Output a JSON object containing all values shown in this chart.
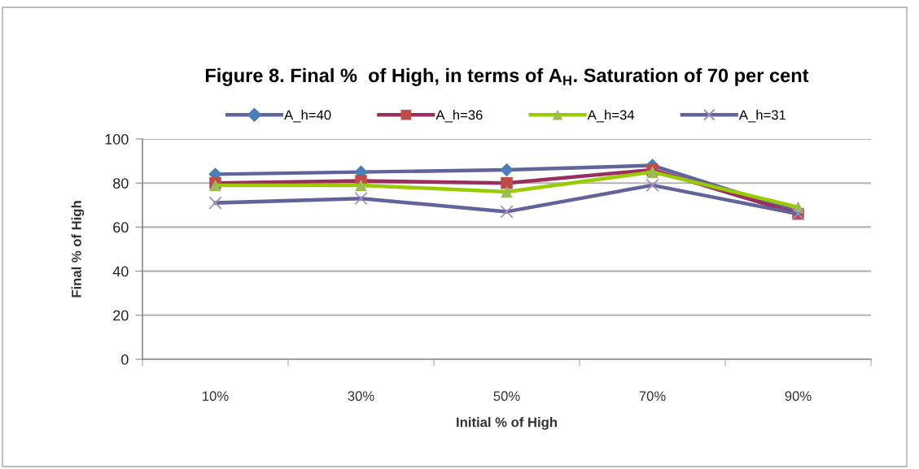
{
  "chart_data": {
    "type": "line",
    "title": "Figure 8. Final %  of High, in terms of A$_{H}$. Saturation of 70 per cent",
    "xlabel": "Initial % of High",
    "ylabel": "Final % of High",
    "categories": [
      "10%",
      "30%",
      "50%",
      "70%",
      "90%"
    ],
    "series": [
      {
        "name": "A_h=40",
        "color": "#62639b",
        "colors": [
          "#4a7ebb",
          "#4a7ebb",
          "#4a7ebb",
          "#4a7ebb",
          "#4a7ebb"
        ],
        "marker": "diamond",
        "values": [
          84,
          85,
          86,
          88,
          67
        ]
      },
      {
        "name": "A_h=36",
        "color": "#9b2d5f",
        "colors": [
          "#be4b48",
          "#be4b48",
          "#be4b48",
          "#be4b48",
          "#be4b48"
        ],
        "marker": "square",
        "values": [
          80,
          81,
          80,
          86,
          66
        ]
      },
      {
        "name": "A_h=34",
        "color": "#99cc00",
        "colors": [
          "#9bbb59",
          "#9bbb59",
          "#9bbb59",
          "#9bbb59",
          "#9bbb59"
        ],
        "marker": "triangle",
        "values": [
          79,
          79,
          76,
          85,
          69
        ]
      },
      {
        "name": "A_h=31",
        "color": "#62639b",
        "colors": [
          "#a08cc0",
          "#a08cc0",
          "#a08cc0",
          "#a08cc0",
          "#a08cc0"
        ],
        "marker": "cross",
        "values": [
          71,
          73,
          67,
          79,
          66
        ]
      }
    ],
    "ylim": [
      0,
      100
    ],
    "yticks": [
      0,
      20,
      40,
      60,
      80,
      100
    ],
    "grid": "y",
    "legend": "top"
  }
}
